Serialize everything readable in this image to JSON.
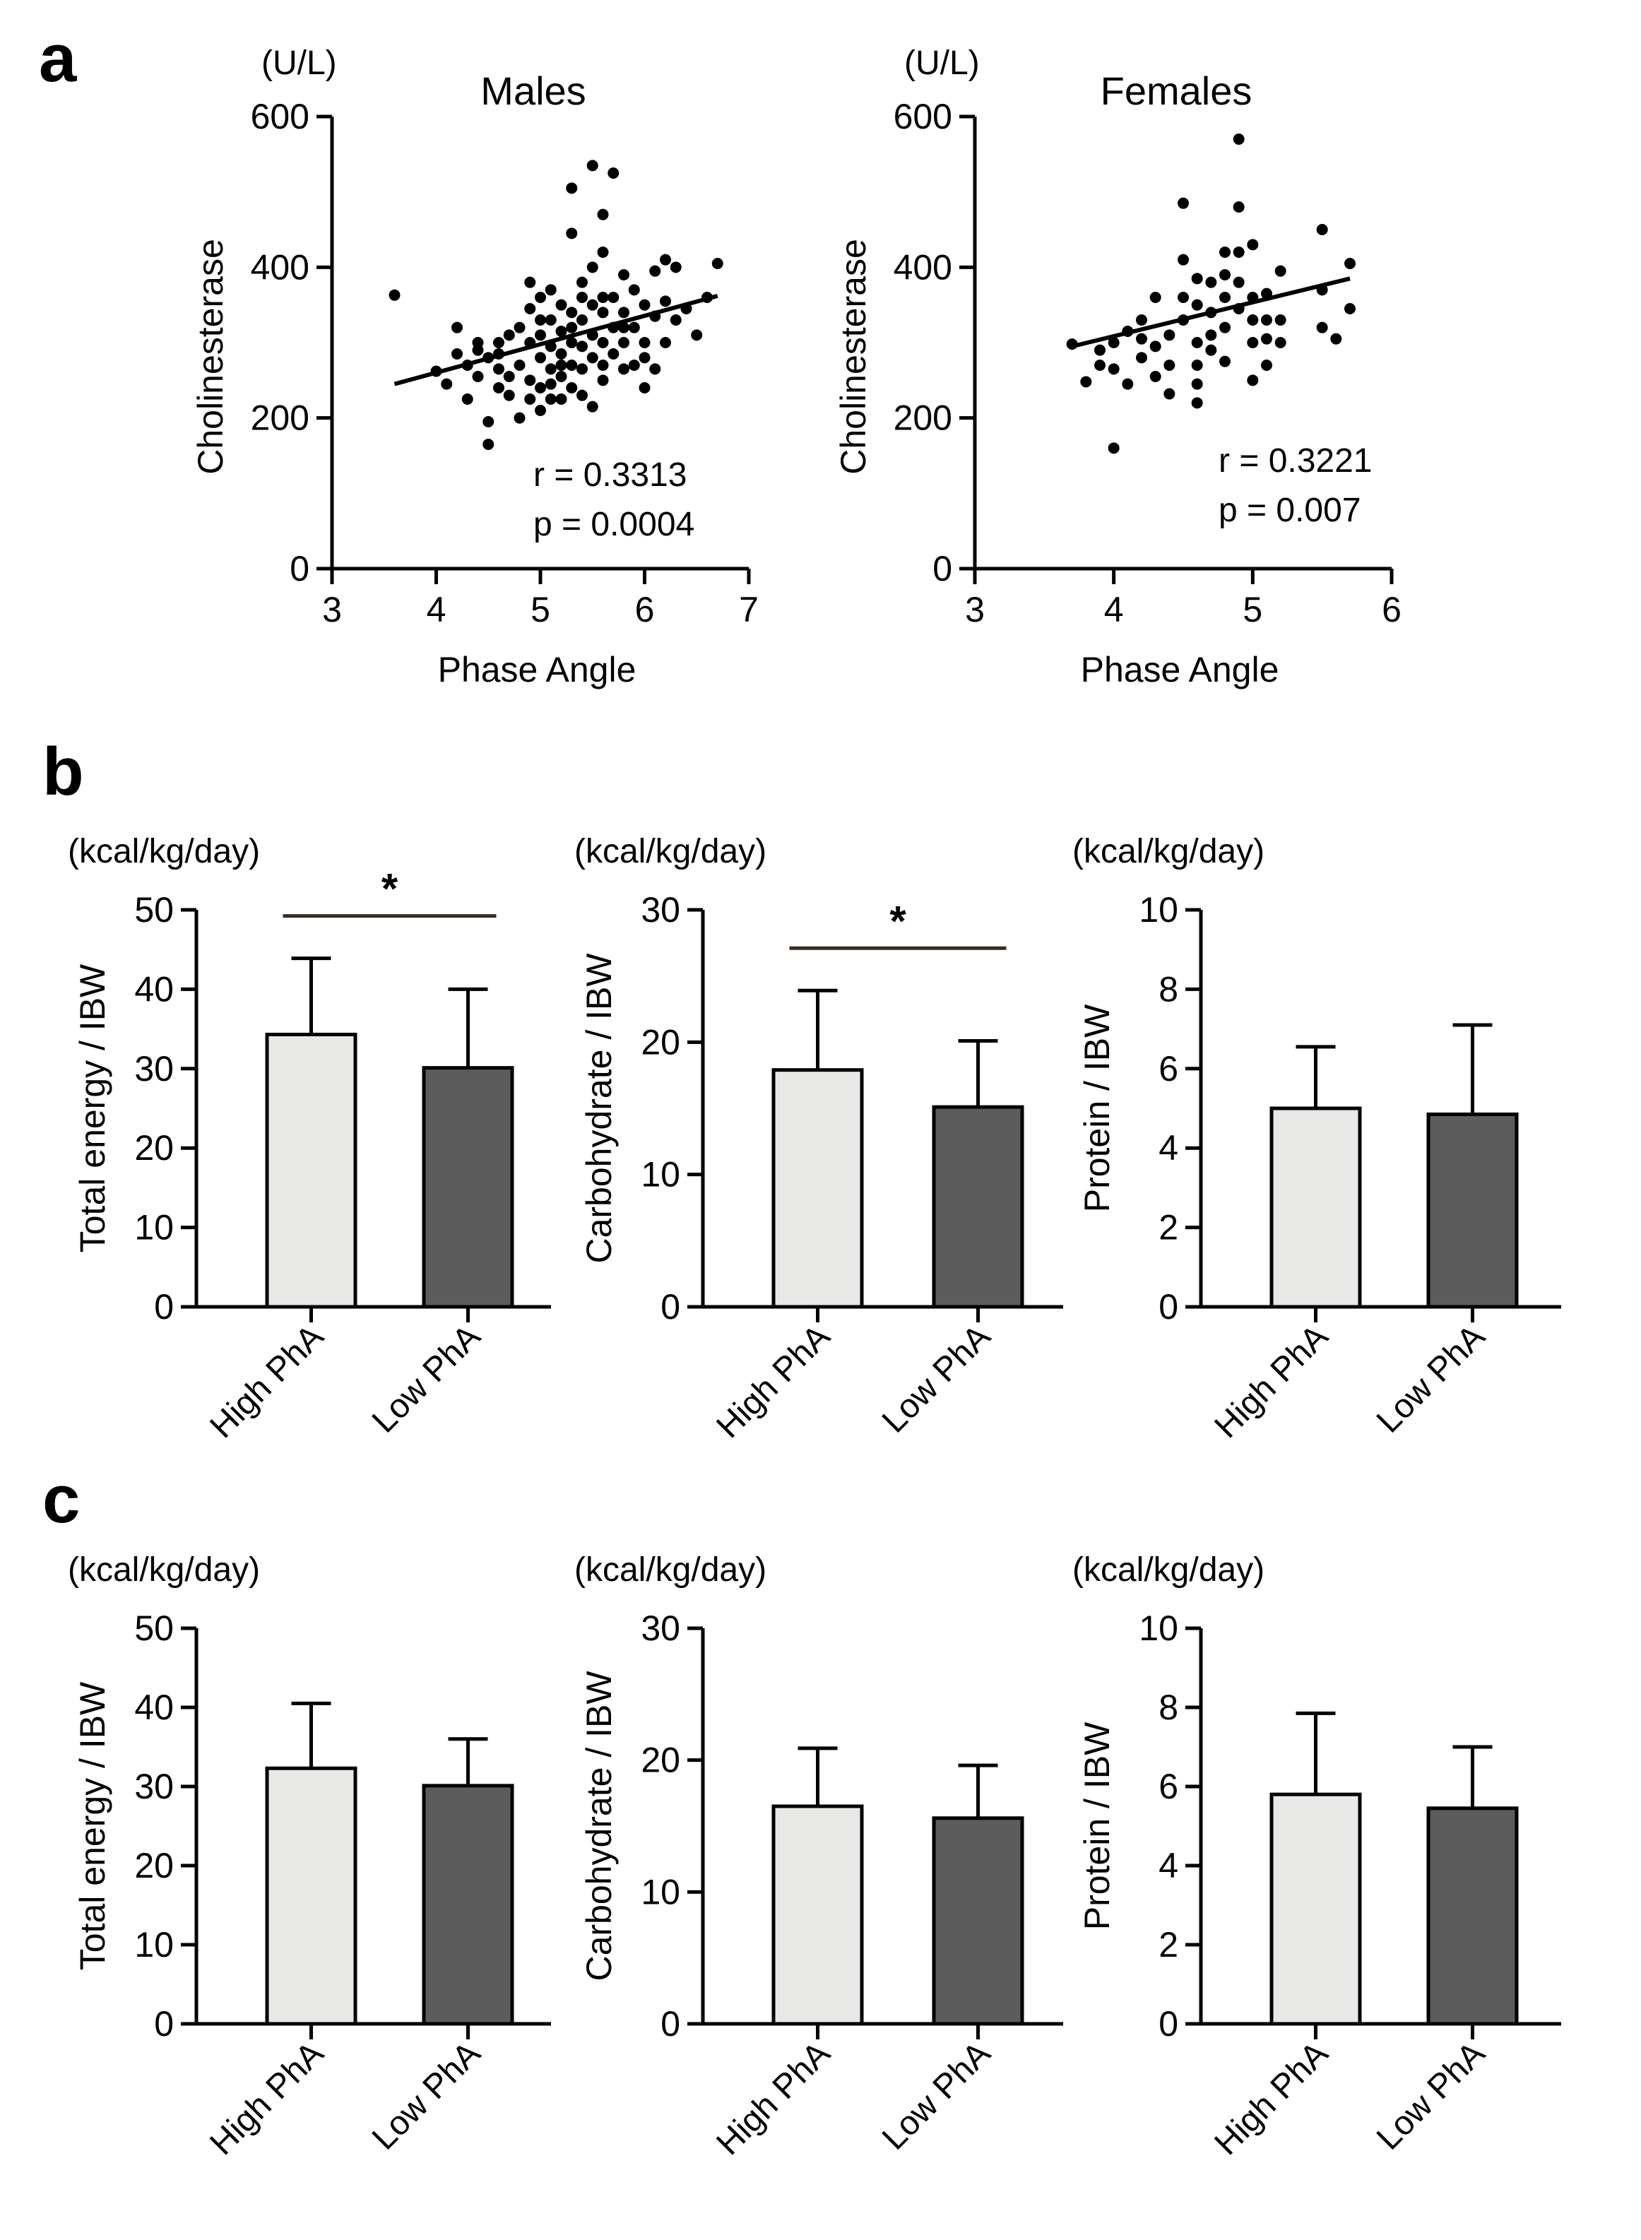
{
  "panels": {
    "a": "a",
    "b": "b",
    "c": "c"
  },
  "chart_data": [
    {
      "id": "males",
      "type": "scatter",
      "title": "Males",
      "unit": "(U/L)",
      "xlabel": "Phase Angle",
      "ylabel": "Cholinesterase",
      "xlim": [
        3,
        7
      ],
      "ylim": [
        0,
        600
      ],
      "xticks": [
        3,
        4,
        5,
        6,
        7
      ],
      "yticks": [
        0,
        200,
        400,
        600
      ],
      "stats": [
        "r = 0.3313",
        "p = 0.0004"
      ],
      "regression": {
        "x": [
          3.6,
          6.7
        ],
        "y": [
          245,
          362
        ]
      },
      "points": [
        [
          3.6,
          363
        ],
        [
          4.0,
          262
        ],
        [
          4.1,
          245
        ],
        [
          4.2,
          285
        ],
        [
          4.2,
          320
        ],
        [
          4.3,
          270
        ],
        [
          4.3,
          225
        ],
        [
          4.4,
          290
        ],
        [
          4.4,
          255
        ],
        [
          4.5,
          195
        ],
        [
          4.5,
          165
        ],
        [
          4.5,
          280
        ],
        [
          4.6,
          300
        ],
        [
          4.6,
          240
        ],
        [
          4.6,
          265
        ],
        [
          4.7,
          310
        ],
        [
          4.7,
          255
        ],
        [
          4.7,
          230
        ],
        [
          4.8,
          320
        ],
        [
          4.8,
          270
        ],
        [
          4.8,
          200
        ],
        [
          4.9,
          380
        ],
        [
          4.9,
          345
        ],
        [
          4.9,
          300
        ],
        [
          4.9,
          250
        ],
        [
          5.0,
          360
        ],
        [
          5.0,
          310
        ],
        [
          5.0,
          280
        ],
        [
          5.0,
          240
        ],
        [
          5.0,
          210
        ],
        [
          5.1,
          330
        ],
        [
          5.1,
          295
        ],
        [
          5.1,
          265
        ],
        [
          5.1,
          225
        ],
        [
          5.1,
          370
        ],
        [
          5.2,
          350
        ],
        [
          5.2,
          315
        ],
        [
          5.2,
          285
        ],
        [
          5.2,
          255
        ],
        [
          5.2,
          225
        ],
        [
          5.3,
          505
        ],
        [
          5.3,
          445
        ],
        [
          5.3,
          340
        ],
        [
          5.3,
          300
        ],
        [
          5.3,
          270
        ],
        [
          5.3,
          240
        ],
        [
          5.4,
          360
        ],
        [
          5.4,
          330
        ],
        [
          5.4,
          295
        ],
        [
          5.4,
          265
        ],
        [
          5.4,
          230
        ],
        [
          5.5,
          535
        ],
        [
          5.5,
          400
        ],
        [
          5.5,
          350
        ],
        [
          5.5,
          310
        ],
        [
          5.5,
          280
        ],
        [
          5.5,
          215
        ],
        [
          5.6,
          470
        ],
        [
          5.6,
          420
        ],
        [
          5.6,
          340
        ],
        [
          5.6,
          300
        ],
        [
          5.6,
          270
        ],
        [
          5.6,
          250
        ],
        [
          5.7,
          525
        ],
        [
          5.7,
          360
        ],
        [
          5.7,
          320
        ],
        [
          5.7,
          285
        ],
        [
          5.8,
          390
        ],
        [
          5.8,
          340
        ],
        [
          5.8,
          300
        ],
        [
          5.8,
          265
        ],
        [
          5.9,
          370
        ],
        [
          5.9,
          320
        ],
        [
          5.9,
          270
        ],
        [
          6.0,
          350
        ],
        [
          6.0,
          300
        ],
        [
          6.0,
          240
        ],
        [
          6.1,
          395
        ],
        [
          6.1,
          335
        ],
        [
          6.1,
          265
        ],
        [
          6.2,
          410
        ],
        [
          6.2,
          355
        ],
        [
          6.3,
          400
        ],
        [
          6.3,
          330
        ],
        [
          6.4,
          345
        ],
        [
          6.5,
          310
        ],
        [
          6.6,
          360
        ],
        [
          6.7,
          405
        ],
        [
          4.4,
          300
        ],
        [
          4.9,
          225
        ],
        [
          5.0,
          330
        ],
        [
          5.2,
          270
        ],
        [
          5.3,
          320
        ],
        [
          5.4,
          380
        ],
        [
          5.6,
          360
        ],
        [
          5.8,
          320
        ],
        [
          6.0,
          280
        ],
        [
          6.2,
          300
        ],
        [
          4.6,
          285
        ],
        [
          5.1,
          245
        ]
      ]
    },
    {
      "id": "females",
      "type": "scatter",
      "title": "Females",
      "unit": "(U/L)",
      "xlabel": "Phase Angle",
      "ylabel": "Cholinesterase",
      "xlim": [
        3,
        6
      ],
      "ylim": [
        0,
        600
      ],
      "xticks": [
        3,
        4,
        5,
        6
      ],
      "yticks": [
        0,
        200,
        400,
        600
      ],
      "stats": [
        "r = 0.3221",
        "p = 0.007"
      ],
      "regression": {
        "x": [
          3.7,
          5.7
        ],
        "y": [
          295,
          385
        ]
      },
      "points": [
        [
          3.7,
          298
        ],
        [
          3.8,
          248
        ],
        [
          3.9,
          270
        ],
        [
          3.9,
          290
        ],
        [
          4.0,
          160
        ],
        [
          4.0,
          300
        ],
        [
          4.0,
          265
        ],
        [
          4.1,
          315
        ],
        [
          4.1,
          245
        ],
        [
          4.2,
          330
        ],
        [
          4.2,
          280
        ],
        [
          4.3,
          295
        ],
        [
          4.3,
          255
        ],
        [
          4.4,
          310
        ],
        [
          4.4,
          270
        ],
        [
          4.4,
          232
        ],
        [
          4.5,
          360
        ],
        [
          4.5,
          485
        ],
        [
          4.5,
          410
        ],
        [
          4.5,
          330
        ],
        [
          4.6,
          350
        ],
        [
          4.6,
          300
        ],
        [
          4.6,
          270
        ],
        [
          4.6,
          245
        ],
        [
          4.6,
          220
        ],
        [
          4.7,
          380
        ],
        [
          4.7,
          340
        ],
        [
          4.7,
          310
        ],
        [
          4.7,
          290
        ],
        [
          4.8,
          390
        ],
        [
          4.8,
          360
        ],
        [
          4.8,
          320
        ],
        [
          4.8,
          275
        ],
        [
          4.9,
          570
        ],
        [
          4.9,
          480
        ],
        [
          4.9,
          420
        ],
        [
          4.9,
          380
        ],
        [
          4.9,
          345
        ],
        [
          5.0,
          430
        ],
        [
          5.0,
          360
        ],
        [
          5.0,
          300
        ],
        [
          5.0,
          250
        ],
        [
          5.1,
          365
        ],
        [
          5.1,
          330
        ],
        [
          5.1,
          305
        ],
        [
          5.1,
          270
        ],
        [
          5.2,
          395
        ],
        [
          5.2,
          330
        ],
        [
          5.2,
          300
        ],
        [
          5.5,
          450
        ],
        [
          5.5,
          370
        ],
        [
          5.5,
          320
        ],
        [
          5.6,
          305
        ],
        [
          5.7,
          405
        ],
        [
          5.7,
          345
        ],
        [
          4.3,
          360
        ],
        [
          4.6,
          385
        ],
        [
          4.8,
          420
        ],
        [
          5.0,
          330
        ],
        [
          4.2,
          305
        ]
      ]
    },
    {
      "id": "b-energy",
      "type": "bar",
      "unit": "(kcal/kg/day)",
      "ylabel": "Total energy / IBW",
      "categories": [
        "High PhA",
        "Low PhA"
      ],
      "values": [
        34.3,
        30.1
      ],
      "errors": [
        9.6,
        9.9
      ],
      "ylim": [
        0,
        50
      ],
      "yticks": [
        0,
        10,
        20,
        30,
        40,
        50
      ],
      "significance": "*"
    },
    {
      "id": "b-carb",
      "type": "bar",
      "unit": "(kcal/kg/day)",
      "ylabel": "Carbohydrate / IBW",
      "categories": [
        "High PhA",
        "Low PhA"
      ],
      "values": [
        17.9,
        15.1
      ],
      "errors": [
        6.0,
        5.0
      ],
      "ylim": [
        0,
        30
      ],
      "yticks": [
        0,
        10,
        20,
        30
      ],
      "significance": "*"
    },
    {
      "id": "b-protein",
      "type": "bar",
      "unit": "(kcal/kg/day)",
      "ylabel": "Protein / IBW",
      "categories": [
        "High PhA",
        "Low PhA"
      ],
      "values": [
        5.0,
        4.85
      ],
      "errors": [
        1.55,
        2.25
      ],
      "ylim": [
        0,
        10
      ],
      "yticks": [
        0,
        2,
        4,
        6,
        8,
        10
      ],
      "significance": ""
    },
    {
      "id": "c-energy",
      "type": "bar",
      "unit": "(kcal/kg/day)",
      "ylabel": "Total energy / IBW",
      "categories": [
        "High PhA",
        "Low PhA"
      ],
      "values": [
        32.3,
        30.1
      ],
      "errors": [
        8.2,
        5.9
      ],
      "ylim": [
        0,
        50
      ],
      "yticks": [
        0,
        10,
        20,
        30,
        40,
        50
      ],
      "significance": ""
    },
    {
      "id": "c-carb",
      "type": "bar",
      "unit": "(kcal/kg/day)",
      "ylabel": "Carbohydrate / IBW",
      "categories": [
        "High PhA",
        "Low PhA"
      ],
      "values": [
        16.5,
        15.6
      ],
      "errors": [
        4.4,
        4.0
      ],
      "ylim": [
        0,
        30
      ],
      "yticks": [
        0,
        10,
        20,
        30
      ],
      "significance": ""
    },
    {
      "id": "c-protein",
      "type": "bar",
      "unit": "(kcal/kg/day)",
      "ylabel": "Protein / IBW",
      "categories": [
        "High PhA",
        "Low PhA"
      ],
      "values": [
        5.8,
        5.45
      ],
      "errors": [
        2.05,
        1.55
      ],
      "ylim": [
        0,
        10
      ],
      "yticks": [
        0,
        2,
        4,
        6,
        8,
        10
      ],
      "significance": ""
    }
  ],
  "colors": {
    "high": "#e8e9e7",
    "low": "#5b5c5b",
    "ink": "#000000",
    "sigline": "#3a2a22"
  }
}
